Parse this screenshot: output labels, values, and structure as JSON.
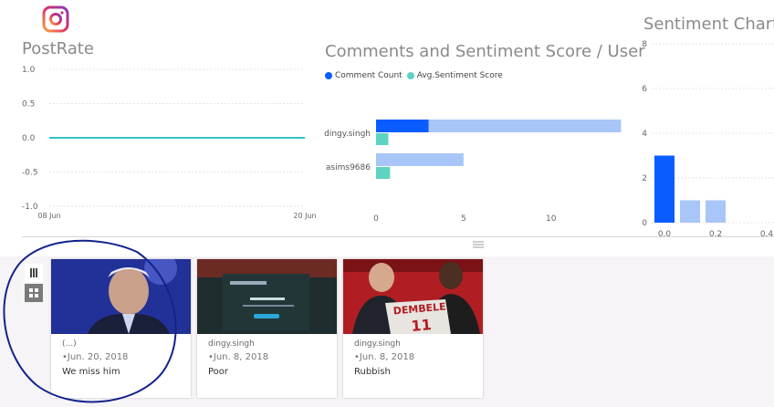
{
  "app": {
    "logo": "instagram-logo-icon"
  },
  "chart_data": [
    {
      "type": "line",
      "title": "PostRate",
      "x": [
        "08 Jun",
        "20 Jun"
      ],
      "series": [
        {
          "values": [
            0,
            0
          ]
        }
      ],
      "yticks": [
        "1.0",
        "0.5",
        "0.0",
        "-0.5",
        "-1.0"
      ],
      "xticks": [
        "08 Jun",
        "20 Jun"
      ],
      "ylim": [
        -1,
        1
      ],
      "grid": true,
      "colors": {
        "line": "#33c2c2",
        "grid": "#e6e6e6"
      }
    },
    {
      "type": "bar",
      "orientation": "horizontal",
      "title": "Comments and Sentiment Score / User",
      "categories": [
        "dingy.singh",
        "asims9686"
      ],
      "series": [
        {
          "name": "Comment Count",
          "values": [
            3,
            0
          ],
          "color": "#0b5cff"
        },
        {
          "name": "Avg.Sentiment Score",
          "values": [
            0.7,
            0.8
          ],
          "color": "#5fd3c3"
        }
      ],
      "highlight_values": [
        14,
        5
      ],
      "highlight_color": "#a8c6f8",
      "xticks": [
        "0",
        "5",
        "10"
      ],
      "xlim": [
        0,
        14.5
      ],
      "legend": "top-left"
    },
    {
      "type": "bar",
      "title": "Sentiment Chart",
      "x": [
        0.0,
        0.1,
        0.2
      ],
      "values": [
        3,
        1,
        1
      ],
      "colors": [
        "#0b5cff",
        "#a8c6f8",
        "#a8c6f8"
      ],
      "yticks": [
        "8",
        "6",
        "4",
        "2",
        "0"
      ],
      "xticks": [
        "0.0",
        "0.2",
        "0.4"
      ],
      "ylim": [
        0,
        8
      ],
      "grid": true
    }
  ],
  "view_controls": {
    "list_icon": "list-view-icon",
    "grid_icon": "grid-view-icon",
    "splitter_icon": "drag-handle-icon"
  },
  "posts": [
    {
      "author": "(...)",
      "date": "•Jun. 20, 2018",
      "text": "We miss him",
      "thumbnail": "photo-man-interview"
    },
    {
      "author": "dingy.singh",
      "date": "•Jun. 8, 2018",
      "text": "Poor",
      "thumbnail": "photo-instagram-profile-screenshot"
    },
    {
      "author": "dingy.singh",
      "date": "•Jun. 8, 2018",
      "text": "Rubbish",
      "thumbnail": "photo-dembele-jersey"
    }
  ]
}
